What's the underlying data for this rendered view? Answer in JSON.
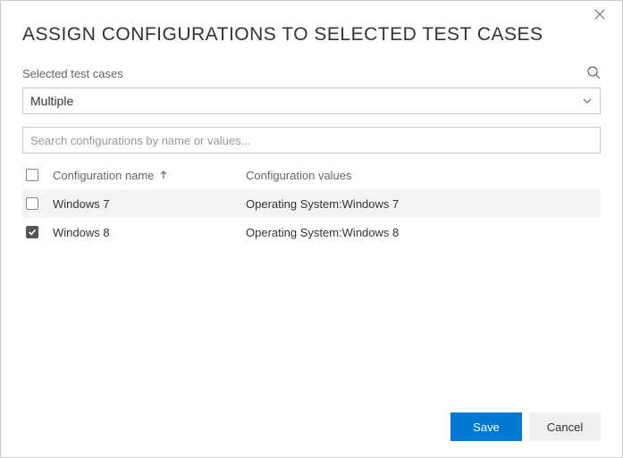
{
  "dialog": {
    "title": "ASSIGN CONFIGURATIONS TO SELECTED TEST CASES",
    "selected_label": "Selected test cases",
    "dropdown_value": "Multiple",
    "filter_placeholder": "Search configurations by name or values...",
    "columns": {
      "check": "",
      "name": "Configuration name",
      "values": "Configuration values"
    },
    "rows": [
      {
        "checked": false,
        "hover": true,
        "name": "Windows 7",
        "values": "Operating System:Windows 7"
      },
      {
        "checked": true,
        "hover": false,
        "name": "Windows 8",
        "values": "Operating System:Windows 8"
      }
    ],
    "buttons": {
      "save": "Save",
      "cancel": "Cancel"
    },
    "colors": {
      "primary": "#0078d4",
      "border": "#c8c8c8",
      "row_hover": "#f4f4f4",
      "text_muted": "#666666"
    }
  }
}
